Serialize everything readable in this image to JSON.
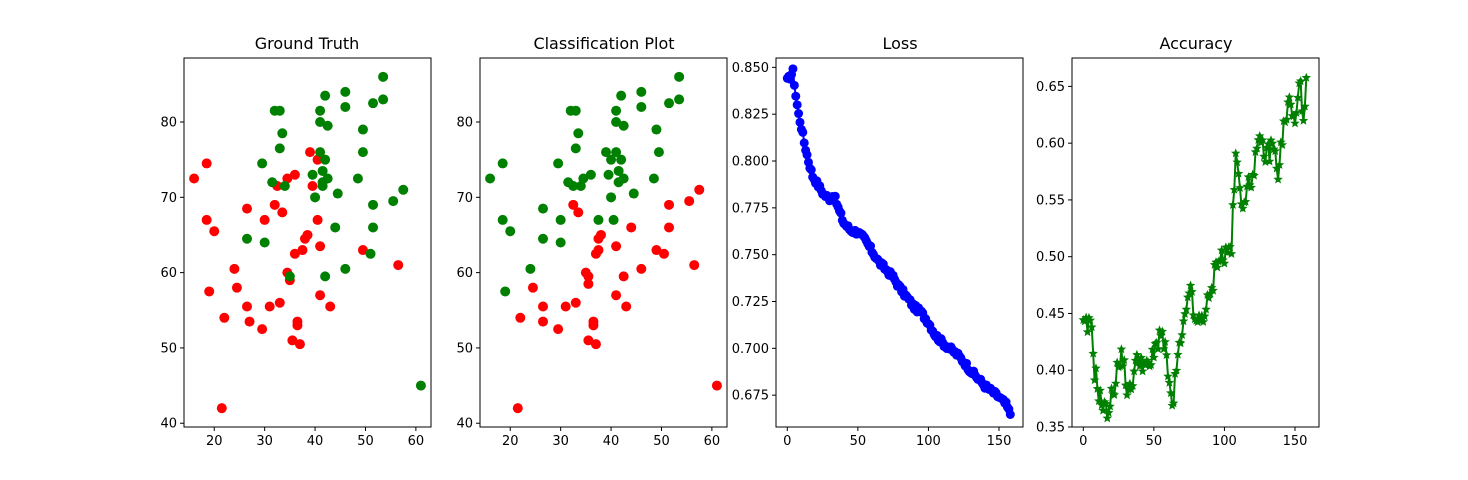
{
  "figure": {
    "background": "#ffffff"
  },
  "chart_data": [
    {
      "type": "scatter",
      "title": "Ground Truth",
      "xlabel": "",
      "ylabel": "",
      "xlim": [
        14,
        63
      ],
      "ylim": [
        39.5,
        88.5
      ],
      "xticks": [
        20,
        30,
        40,
        50,
        60
      ],
      "yticks": [
        40,
        50,
        60,
        70,
        80
      ],
      "grid": false,
      "colors": {
        "red": "#ff0000",
        "green": "#008000"
      },
      "points_red": [
        [
          16,
          72.5
        ],
        [
          18.5,
          74.5
        ],
        [
          18.5,
          67
        ],
        [
          19,
          57.5
        ],
        [
          20,
          65.5
        ],
        [
          21.5,
          42
        ],
        [
          22,
          54
        ],
        [
          24,
          60.5
        ],
        [
          24.5,
          58
        ],
        [
          26.5,
          68.5
        ],
        [
          26.5,
          55.5
        ],
        [
          27,
          53.5
        ],
        [
          29.5,
          52.5
        ],
        [
          30,
          67
        ],
        [
          31,
          55.5
        ],
        [
          32,
          69
        ],
        [
          32.5,
          71.5
        ],
        [
          33,
          56
        ],
        [
          33.5,
          68
        ],
        [
          34.5,
          72.5
        ],
        [
          34.5,
          60
        ],
        [
          35,
          59
        ],
        [
          35.5,
          51
        ],
        [
          36,
          62.5
        ],
        [
          36,
          73
        ],
        [
          36.5,
          53.5
        ],
        [
          36.5,
          53
        ],
        [
          37,
          50.5
        ],
        [
          37.5,
          63
        ],
        [
          38,
          64.5
        ],
        [
          38.5,
          65
        ],
        [
          39,
          76
        ],
        [
          39.5,
          71.5
        ],
        [
          40.5,
          75
        ],
        [
          40.5,
          67
        ],
        [
          41,
          63.5
        ],
        [
          41,
          57
        ],
        [
          43,
          55.5
        ],
        [
          49.5,
          63
        ],
        [
          56.5,
          61
        ]
      ],
      "points_green": [
        [
          26.5,
          64.5
        ],
        [
          29.5,
          74.5
        ],
        [
          30,
          64
        ],
        [
          31.5,
          72
        ],
        [
          32,
          81.5
        ],
        [
          33,
          81.5
        ],
        [
          33,
          76.5
        ],
        [
          33.5,
          78.5
        ],
        [
          34,
          71.5
        ],
        [
          35,
          59.5
        ],
        [
          39.5,
          73
        ],
        [
          40,
          70
        ],
        [
          41,
          76
        ],
        [
          41,
          81.5
        ],
        [
          41,
          80
        ],
        [
          41.5,
          72
        ],
        [
          41.5,
          71.5
        ],
        [
          41.5,
          73.5
        ],
        [
          42,
          75
        ],
        [
          42,
          59.5
        ],
        [
          42,
          83.5
        ],
        [
          42.5,
          72.5
        ],
        [
          42.5,
          79.5
        ],
        [
          44,
          66
        ],
        [
          44.5,
          70.5
        ],
        [
          46,
          84
        ],
        [
          46,
          82
        ],
        [
          46,
          60.5
        ],
        [
          48.5,
          72.5
        ],
        [
          49.5,
          79
        ],
        [
          49.5,
          76
        ],
        [
          51,
          62.5
        ],
        [
          51.5,
          69
        ],
        [
          51.5,
          66
        ],
        [
          51.5,
          82.5
        ],
        [
          53.5,
          83
        ],
        [
          53.5,
          86
        ],
        [
          55.5,
          69.5
        ],
        [
          57.5,
          71
        ],
        [
          61,
          45
        ]
      ]
    },
    {
      "type": "scatter",
      "title": "Classification Plot",
      "xlabel": "",
      "ylabel": "",
      "xlim": [
        14,
        63
      ],
      "ylim": [
        39.5,
        88.5
      ],
      "xticks": [
        20,
        30,
        40,
        50,
        60
      ],
      "yticks": [
        40,
        50,
        60,
        70,
        80
      ],
      "grid": false,
      "colors": {
        "red": "#ff0000",
        "green": "#008000"
      },
      "points_red": [
        [
          21.5,
          42
        ],
        [
          22,
          54
        ],
        [
          24.5,
          58
        ],
        [
          26.5,
          55.5
        ],
        [
          26.5,
          53.5
        ],
        [
          29.5,
          52.5
        ],
        [
          31,
          55.5
        ],
        [
          32.5,
          69
        ],
        [
          33,
          56
        ],
        [
          33.5,
          68
        ],
        [
          35,
          60
        ],
        [
          35.5,
          59.5
        ],
        [
          35.5,
          58.5
        ],
        [
          35.5,
          51
        ],
        [
          36.5,
          53.5
        ],
        [
          36.5,
          53
        ],
        [
          37,
          50.5
        ],
        [
          37,
          62.5
        ],
        [
          37.5,
          64.5
        ],
        [
          37.5,
          63
        ],
        [
          38,
          65
        ],
        [
          41,
          63.5
        ],
        [
          41,
          57
        ],
        [
          42.5,
          59.5
        ],
        [
          43,
          55.5
        ],
        [
          44,
          66
        ],
        [
          46,
          60.5
        ],
        [
          49,
          63
        ],
        [
          50.5,
          62.5
        ],
        [
          51.5,
          69
        ],
        [
          51.5,
          66
        ],
        [
          55.5,
          69.5
        ],
        [
          56.5,
          61
        ],
        [
          57.5,
          71
        ],
        [
          61,
          45
        ]
      ],
      "points_green": [
        [
          16,
          72.5
        ],
        [
          18.5,
          74.5
        ],
        [
          18.5,
          67
        ],
        [
          19,
          57.5
        ],
        [
          20,
          65.5
        ],
        [
          24,
          60.5
        ],
        [
          26.5,
          68.5
        ],
        [
          26.5,
          64.5
        ],
        [
          29.5,
          74.5
        ],
        [
          30,
          67
        ],
        [
          30,
          64
        ],
        [
          31.5,
          72
        ],
        [
          32,
          81.5
        ],
        [
          32.5,
          71.5
        ],
        [
          33,
          81.5
        ],
        [
          33,
          76.5
        ],
        [
          33.5,
          78.5
        ],
        [
          34,
          71.5
        ],
        [
          34.5,
          72.5
        ],
        [
          36,
          73
        ],
        [
          37.5,
          67
        ],
        [
          39,
          76
        ],
        [
          39.5,
          73
        ],
        [
          40,
          75
        ],
        [
          40,
          70
        ],
        [
          40.5,
          67
        ],
        [
          41,
          76
        ],
        [
          41,
          81.5
        ],
        [
          41,
          80
        ],
        [
          41.5,
          72
        ],
        [
          41.5,
          73.5
        ],
        [
          42,
          75
        ],
        [
          42,
          83.5
        ],
        [
          42.5,
          72.5
        ],
        [
          42.5,
          79.5
        ],
        [
          44.5,
          70.5
        ],
        [
          46,
          84
        ],
        [
          46,
          82
        ],
        [
          48.5,
          72.5
        ],
        [
          49,
          79
        ],
        [
          49.5,
          76
        ],
        [
          51.5,
          82.5
        ],
        [
          53.5,
          83
        ],
        [
          53.5,
          86
        ]
      ]
    },
    {
      "type": "line",
      "title": "Loss",
      "xlabel": "",
      "ylabel": "",
      "marker": "circle",
      "color": "#0000ff",
      "xlim": [
        -8,
        167
      ],
      "ylim": [
        0.658,
        0.855
      ],
      "xticks": [
        0,
        50,
        100,
        150
      ],
      "yticks": [
        0.675,
        0.7,
        0.725,
        0.75,
        0.775,
        0.8,
        0.825,
        0.85
      ],
      "yticklabels": [
        "0.675",
        "0.700",
        "0.725",
        "0.750",
        "0.775",
        "0.800",
        "0.825",
        "0.850"
      ],
      "grid": false,
      "anchors": [
        [
          0,
          0.843
        ],
        [
          2,
          0.845
        ],
        [
          4,
          0.848
        ],
        [
          6,
          0.835
        ],
        [
          8,
          0.825
        ],
        [
          10,
          0.818
        ],
        [
          12,
          0.81
        ],
        [
          15,
          0.8
        ],
        [
          18,
          0.792
        ],
        [
          22,
          0.787
        ],
        [
          26,
          0.782
        ],
        [
          30,
          0.78
        ],
        [
          33,
          0.782
        ],
        [
          36,
          0.775
        ],
        [
          40,
          0.767
        ],
        [
          45,
          0.763
        ],
        [
          50,
          0.762
        ],
        [
          55,
          0.758
        ],
        [
          60,
          0.752
        ],
        [
          65,
          0.746
        ],
        [
          70,
          0.742
        ],
        [
          75,
          0.738
        ],
        [
          80,
          0.732
        ],
        [
          85,
          0.727
        ],
        [
          90,
          0.722
        ],
        [
          95,
          0.719
        ],
        [
          100,
          0.714
        ],
        [
          105,
          0.707
        ],
        [
          110,
          0.703
        ],
        [
          115,
          0.7
        ],
        [
          120,
          0.697
        ],
        [
          125,
          0.693
        ],
        [
          130,
          0.688
        ],
        [
          135,
          0.684
        ],
        [
          140,
          0.68
        ],
        [
          145,
          0.677
        ],
        [
          150,
          0.674
        ],
        [
          155,
          0.67
        ],
        [
          158,
          0.665
        ]
      ]
    },
    {
      "type": "line",
      "title": "Accuracy",
      "xlabel": "",
      "ylabel": "",
      "marker": "star",
      "color": "#008000",
      "xlim": [
        -8,
        167
      ],
      "ylim": [
        0.35,
        0.675
      ],
      "xticks": [
        0,
        50,
        100,
        150
      ],
      "yticks": [
        0.35,
        0.4,
        0.45,
        0.5,
        0.55,
        0.6,
        0.65
      ],
      "yticklabels": [
        "0.35",
        "0.40",
        "0.45",
        "0.50",
        "0.55",
        "0.60",
        "0.65"
      ],
      "grid": false,
      "anchors": [
        [
          0,
          0.4375
        ],
        [
          6,
          0.4375
        ],
        [
          8,
          0.4
        ],
        [
          12,
          0.375
        ],
        [
          16,
          0.3625
        ],
        [
          20,
          0.375
        ],
        [
          24,
          0.4
        ],
        [
          28,
          0.4125
        ],
        [
          32,
          0.375
        ],
        [
          36,
          0.4
        ],
        [
          40,
          0.4125
        ],
        [
          45,
          0.4
        ],
        [
          50,
          0.4125
        ],
        [
          55,
          0.4375
        ],
        [
          60,
          0.4
        ],
        [
          63,
          0.3625
        ],
        [
          67,
          0.4125
        ],
        [
          70,
          0.425
        ],
        [
          75,
          0.475
        ],
        [
          80,
          0.4375
        ],
        [
          85,
          0.45
        ],
        [
          90,
          0.4625
        ],
        [
          95,
          0.5
        ],
        [
          100,
          0.5
        ],
        [
          105,
          0.51
        ],
        [
          108,
          0.5875
        ],
        [
          112,
          0.55
        ],
        [
          118,
          0.5625
        ],
        [
          122,
          0.5875
        ],
        [
          126,
          0.6
        ],
        [
          130,
          0.5875
        ],
        [
          134,
          0.6
        ],
        [
          138,
          0.575
        ],
        [
          142,
          0.6125
        ],
        [
          146,
          0.6375
        ],
        [
          150,
          0.6125
        ],
        [
          153,
          0.6625
        ],
        [
          156,
          0.6125
        ],
        [
          158,
          0.65
        ]
      ]
    }
  ]
}
